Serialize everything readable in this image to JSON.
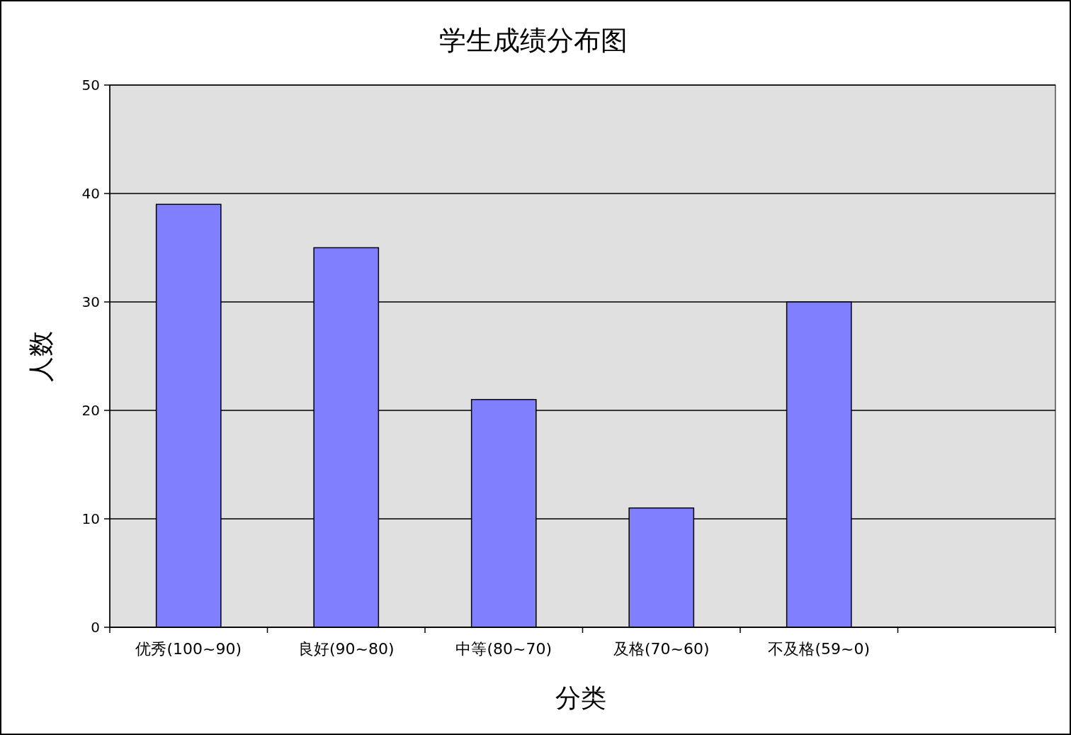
{
  "chart_data": {
    "type": "bar",
    "title": "学生成绩分布图",
    "xlabel": "分类",
    "ylabel": "人数",
    "categories": [
      "优秀(100~90)",
      "良好(90~80)",
      "中等(80~70)",
      "及格(70~60)",
      "不及格(59~0)",
      null
    ],
    "values": [
      39,
      35,
      21,
      11,
      30,
      null
    ],
    "color": "#8080ff",
    "ylim": [
      0,
      50
    ],
    "yticks": [
      0,
      10,
      20,
      30,
      40,
      50
    ],
    "grid": "y"
  }
}
